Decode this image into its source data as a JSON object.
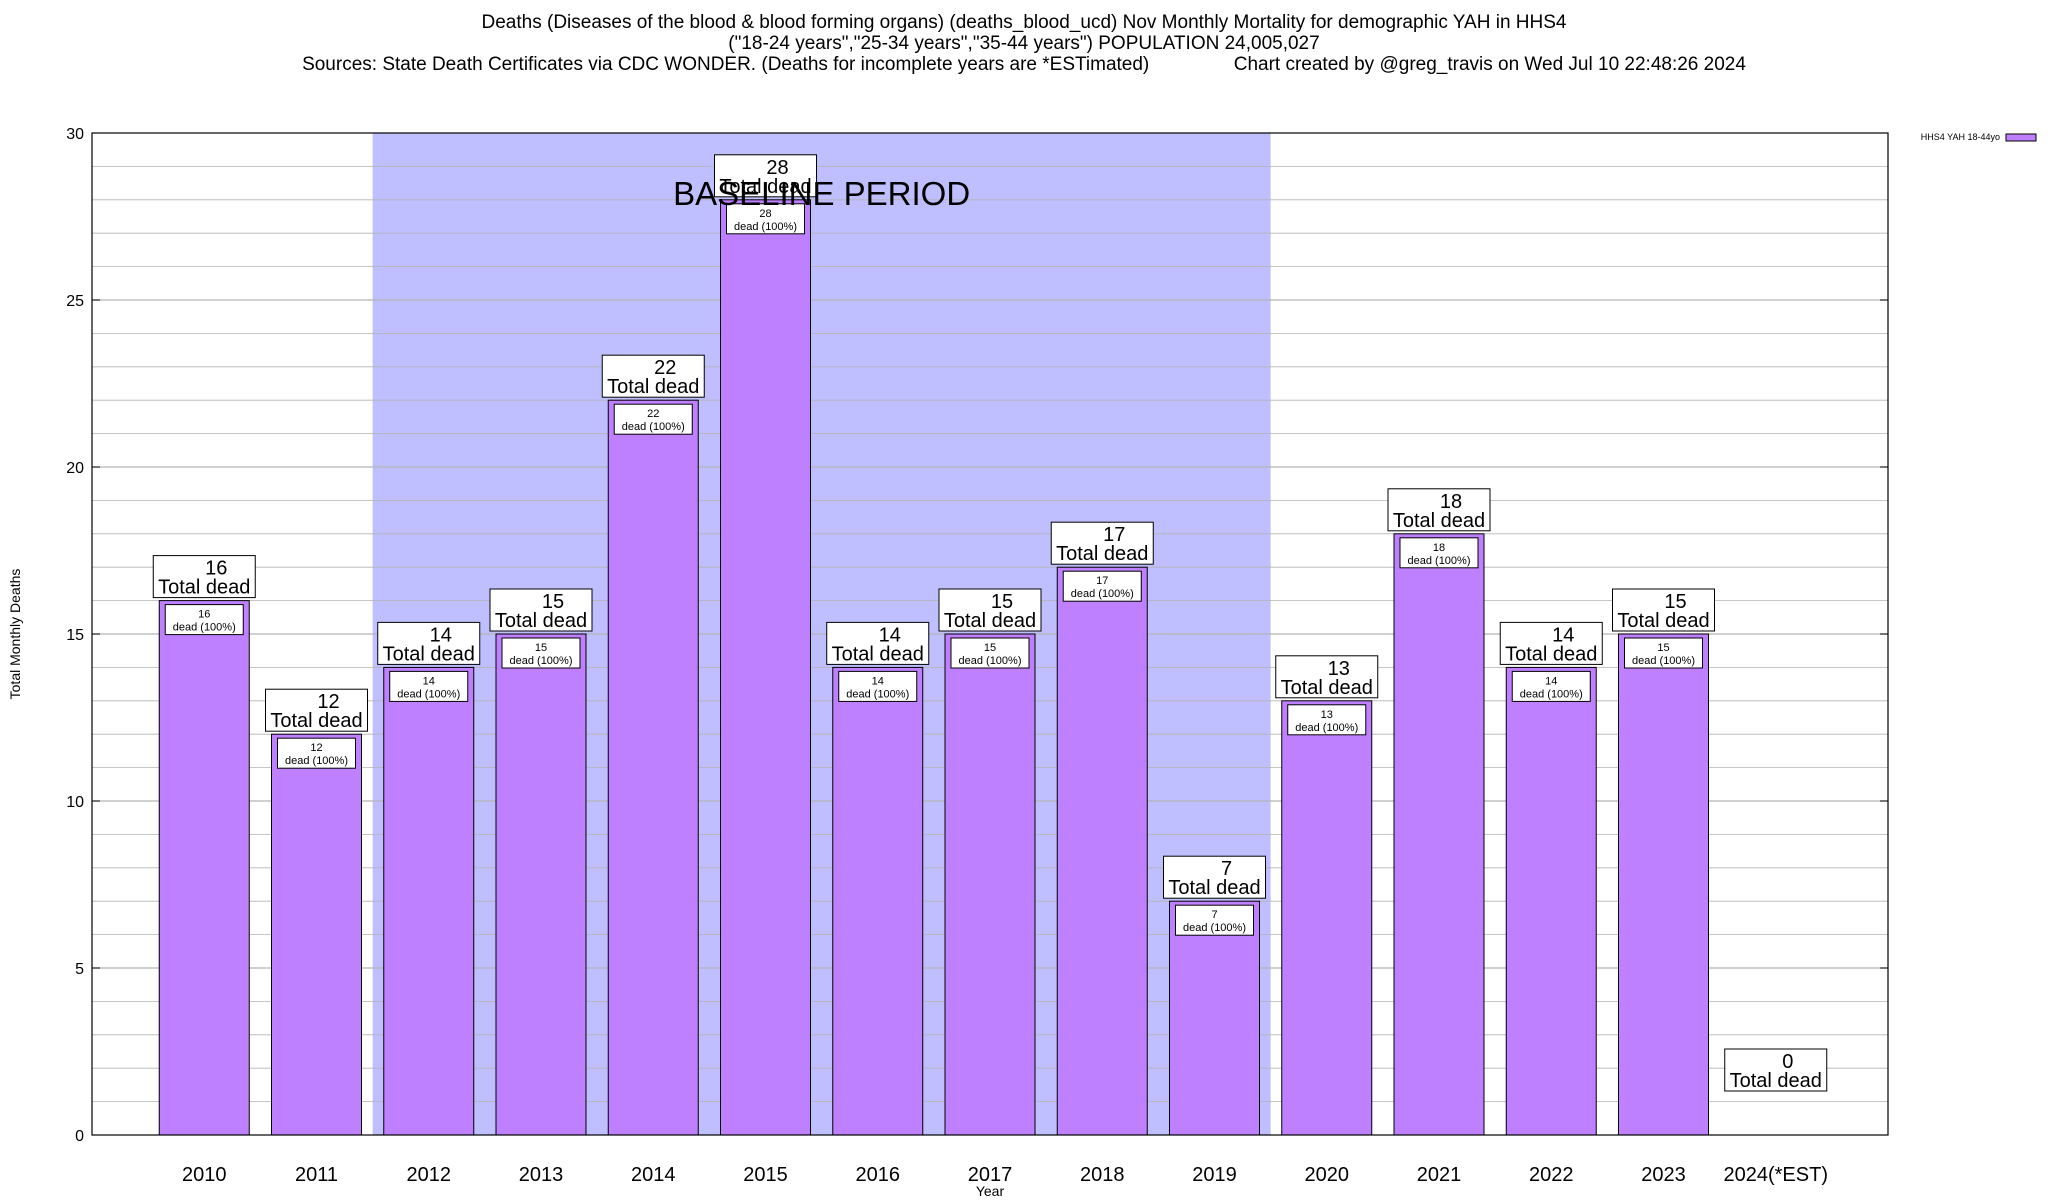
{
  "title_lines": [
    "Deaths (Diseases of the blood & blood forming organs) (deaths_blood_ucd) Nov Monthly Mortality for demographic YAH in HHS4",
    "(\"18-24 years\",\"25-34 years\",\"35-44 years\") POPULATION 24,005,027",
    "Sources: State Death Certificates via CDC WONDER. (Deaths for incomplete years are *ESTimated)                Chart created by @greg_travis on Wed Jul 10 22:48:26 2024"
  ],
  "colors": {
    "bar_fill": "#bf80ff",
    "bar_stroke": "#000000",
    "baseline_fill": "#bfbfff",
    "grid": "#b4b4b4",
    "legend_fill": "#bf80ff"
  },
  "chart_data": {
    "type": "bar",
    "title": "Deaths (Diseases of the blood & blood forming organs) (deaths_blood_ucd) Nov Monthly Mortality for demographic YAH in HHS4",
    "xlabel": "Year",
    "ylabel": "Total Monthly Deaths",
    "ylim": [
      0,
      30
    ],
    "yticks": [
      0,
      5,
      10,
      15,
      20,
      25,
      30
    ],
    "grid": true,
    "legend": {
      "position": "top-right",
      "label": "HHS4 YAH 18-44yo"
    },
    "categories": [
      "2010",
      "2011",
      "2012",
      "2013",
      "2014",
      "2015",
      "2016",
      "2017",
      "2018",
      "2019",
      "2020",
      "2021",
      "2022",
      "2023",
      "2024(*EST)"
    ],
    "series": [
      {
        "name": "HHS4 YAH 18-44yo",
        "values": [
          16,
          12,
          14,
          15,
          22,
          28,
          14,
          15,
          17,
          7,
          13,
          18,
          14,
          15,
          0
        ]
      }
    ],
    "total_label_suffix": "Total dead",
    "inner_label_suffix": "dead (100%)",
    "baseline_period": {
      "label": "BASELINE PERIOD",
      "from": "2012",
      "to": "2019"
    }
  }
}
